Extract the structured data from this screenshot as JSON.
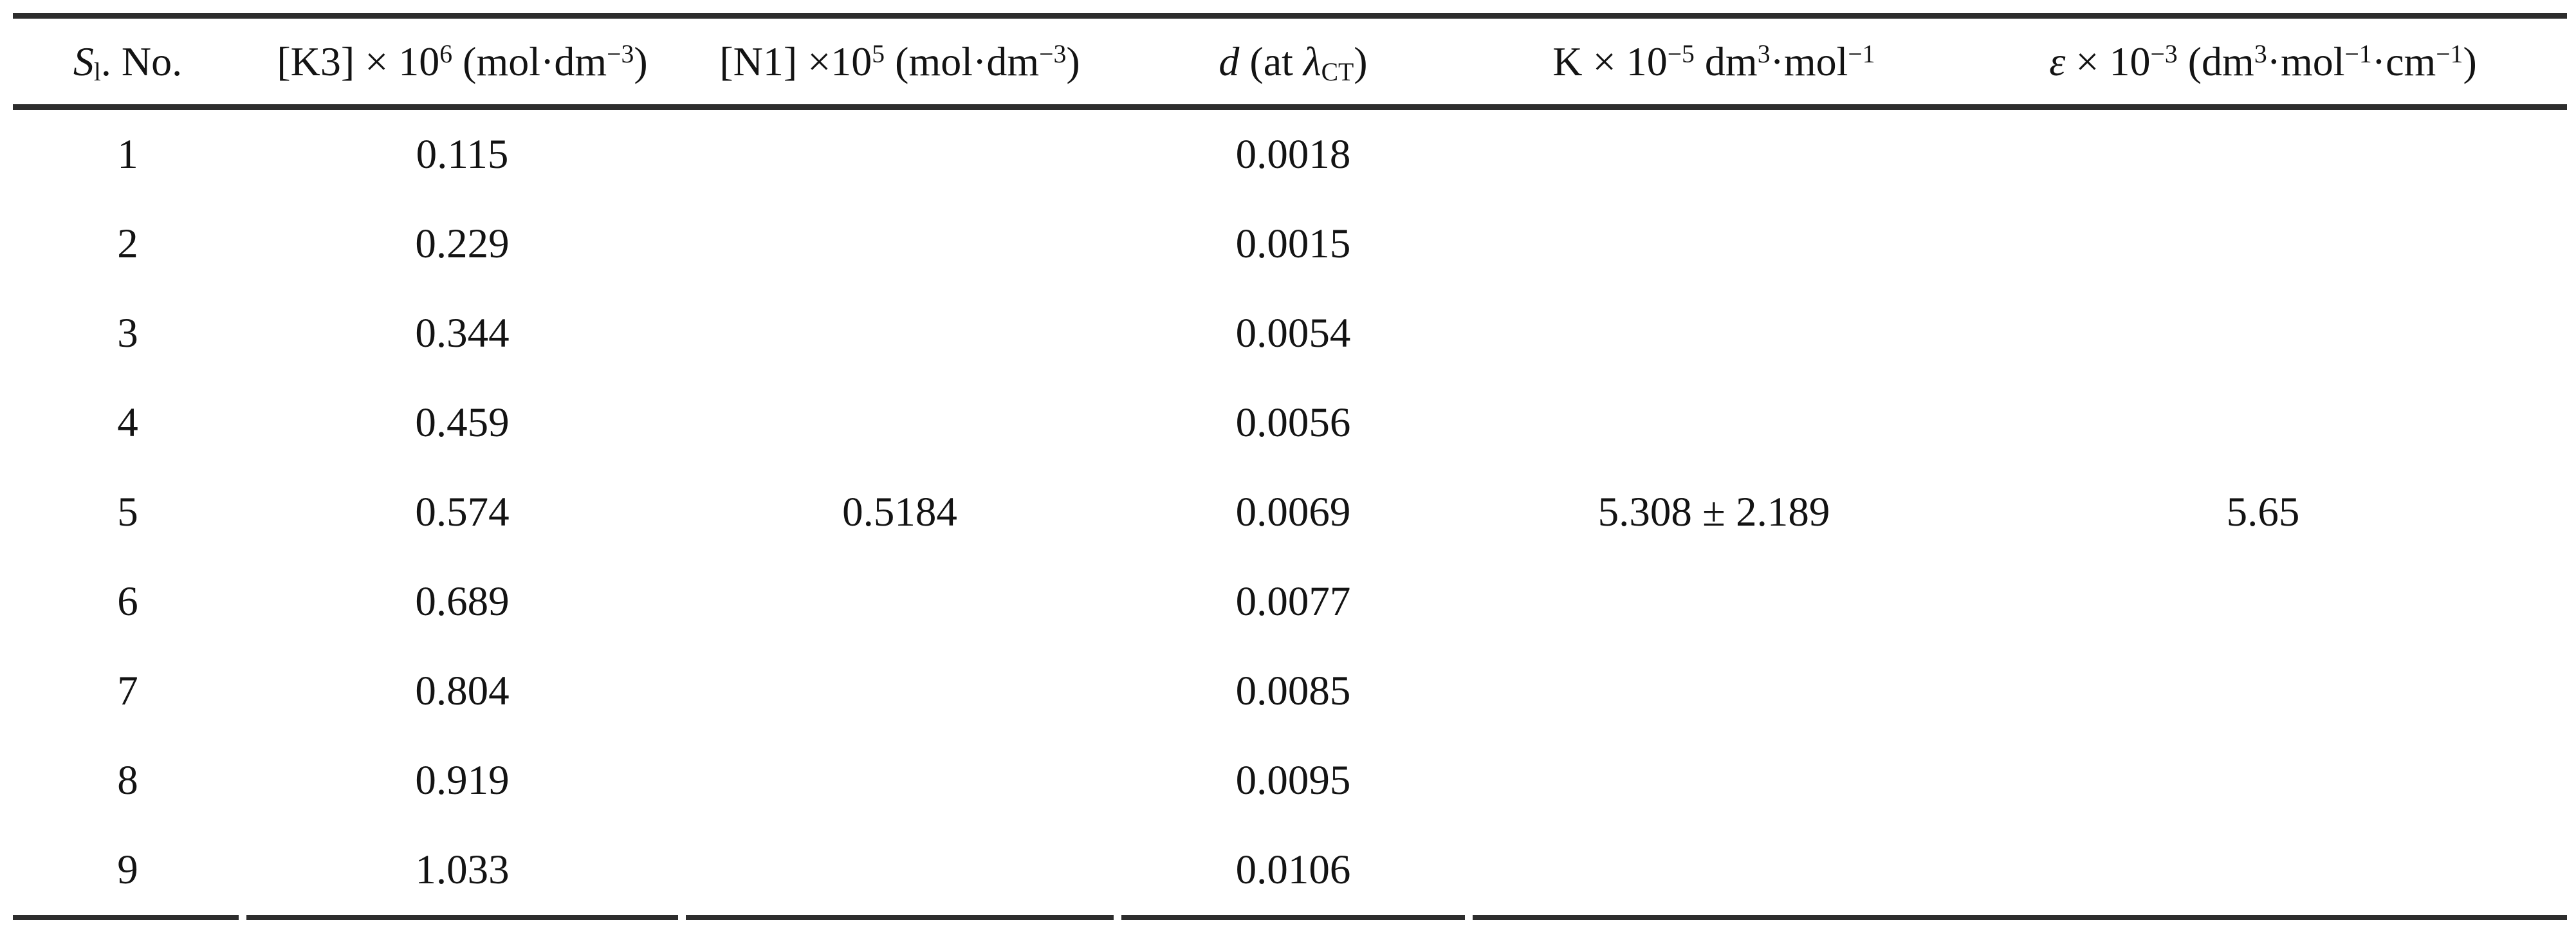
{
  "colors": {
    "rule": "#2d2d2d",
    "text": "#131313",
    "background": "#ffffff"
  },
  "headers": {
    "sl": {
      "s": "S",
      "sub_l": "l",
      "rest": ". No."
    },
    "k3": {
      "p1": "[K3] × 10",
      "sup1": "6",
      "p2": " (mol·dm",
      "sup2": "−3",
      "p3": ")"
    },
    "n1": {
      "p1": "[N1] ×10",
      "sup1": "5",
      "p2": " (mol·dm",
      "sup2": "−3",
      "p3": ")"
    },
    "d": {
      "d": "d",
      "p1": " (at ",
      "lambda": "λ",
      "sub": "CT",
      "p2": ")"
    },
    "k": {
      "p1": "K × 10",
      "sup1": "−5",
      "p2": " dm",
      "sup2": "3",
      "p3": "·mol",
      "sup3": "−1"
    },
    "eps": {
      "eps": "ε",
      "p1": " × 10",
      "sup1": "−3",
      "p2": " (dm",
      "sup2": "3",
      "p3": "·mol",
      "sup3": "−1",
      "p4": "·cm",
      "sup4": "−1",
      "p5": ")"
    }
  },
  "rows": [
    [
      "1",
      "0.115",
      "",
      "0.0018",
      "",
      ""
    ],
    [
      "2",
      "0.229",
      "",
      "0.0015",
      "",
      ""
    ],
    [
      "3",
      "0.344",
      "",
      "0.0054",
      "",
      ""
    ],
    [
      "4",
      "0.459",
      "",
      "0.0056",
      "",
      ""
    ],
    [
      "5",
      "0.574",
      "0.5184",
      "0.0069",
      "5.308 ± 2.189",
      "5.65"
    ],
    [
      "6",
      "0.689",
      "",
      "0.0077",
      "",
      ""
    ],
    [
      "7",
      "0.804",
      "",
      "0.0085",
      "",
      ""
    ],
    [
      "8",
      "0.919",
      "",
      "0.0095",
      "",
      ""
    ],
    [
      "9",
      "1.033",
      "",
      "0.0106",
      "",
      ""
    ]
  ]
}
